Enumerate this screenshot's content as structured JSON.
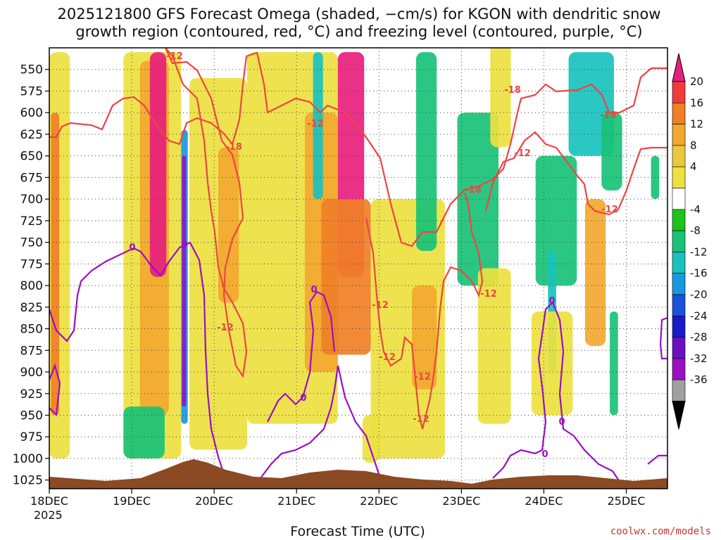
{
  "chart_data": {
    "type": "heatmap",
    "title_line1": "2025121800 GFS Forecast Omega (shaded, −cm/s) for KGON with dendritic snow",
    "title_line2": "growth region (contoured, red, °C) and freezing level (contoured, purple, °C)",
    "xlabel": "Forecast Time (UTC)",
    "credit": "coolwx.com/models",
    "x_ticks": [
      "18DEC",
      "19DEC",
      "20DEC",
      "21DEC",
      "22DEC",
      "23DEC",
      "24DEC",
      "25DEC"
    ],
    "x_year": "2025",
    "x_range_days": [
      18,
      25.5
    ],
    "y_ticks": [
      550,
      575,
      600,
      625,
      650,
      675,
      700,
      725,
      750,
      775,
      800,
      825,
      850,
      875,
      900,
      925,
      950,
      975,
      1000,
      1025
    ],
    "y_range_hpa": [
      525,
      1035
    ],
    "grid": true,
    "colorbar": {
      "ticks": [
        "20",
        "16",
        "12",
        "8",
        "4",
        "-4",
        "-8",
        "-12",
        "-16",
        "-20",
        "-24",
        "-28",
        "-32",
        "-36"
      ],
      "colors": [
        "#e8207d",
        "#ef3b3b",
        "#f07f26",
        "#f2a830",
        "#e9c83d",
        "#ede13f",
        "#ffffff",
        "#1ec21a",
        "#19c277",
        "#19c2bd",
        "#1898e0",
        "#1a52d8",
        "#1a1ac8",
        "#6a10c2",
        "#9a10c2",
        "#a0a0a0",
        "#000000"
      ]
    },
    "omega_regions": [
      {
        "omega": 6,
        "x": [
          18.0,
          18.25
        ],
        "p": [
          530,
          1000
        ]
      },
      {
        "omega": 12,
        "x": [
          18.02,
          18.12
        ],
        "p": [
          600,
          950
        ]
      },
      {
        "omega": 5,
        "x": [
          18.9,
          19.6
        ],
        "p": [
          530,
          1000
        ]
      },
      {
        "omega": 10,
        "x": [
          19.1,
          19.45
        ],
        "p": [
          540,
          950
        ]
      },
      {
        "omega": 22,
        "x": [
          19.22,
          19.42
        ],
        "p": [
          530,
          790
        ]
      },
      {
        "omega": -18,
        "x": [
          19.6,
          19.68
        ],
        "p": [
          620,
          960
        ]
      },
      {
        "omega": -30,
        "x": [
          19.61,
          19.66
        ],
        "p": [
          650,
          940
        ]
      },
      {
        "omega": 5,
        "x": [
          19.7,
          20.4
        ],
        "p": [
          560,
          990
        ]
      },
      {
        "omega": 10,
        "x": [
          20.05,
          20.3
        ],
        "p": [
          640,
          820
        ]
      },
      {
        "omega": 6,
        "x": [
          20.4,
          21.5
        ],
        "p": [
          530,
          960
        ]
      },
      {
        "omega": 10,
        "x": [
          21.1,
          21.5
        ],
        "p": [
          600,
          900
        ]
      },
      {
        "omega": 22,
        "x": [
          21.5,
          21.82
        ],
        "p": [
          530,
          790
        ]
      },
      {
        "omega": 12,
        "x": [
          21.3,
          21.9
        ],
        "p": [
          700,
          880
        ]
      },
      {
        "omega": 5,
        "x": [
          21.9,
          22.8
        ],
        "p": [
          700,
          1000
        ]
      },
      {
        "omega": 10,
        "x": [
          22.4,
          22.7
        ],
        "p": [
          800,
          920
        ]
      },
      {
        "omega": -12,
        "x": [
          21.2,
          21.32
        ],
        "p": [
          530,
          700
        ]
      },
      {
        "omega": -8,
        "x": [
          22.45,
          22.7
        ],
        "p": [
          530,
          760
        ]
      },
      {
        "omega": -8,
        "x": [
          22.95,
          23.45
        ],
        "p": [
          600,
          800
        ]
      },
      {
        "omega": 5,
        "x": [
          23.35,
          23.6
        ],
        "p": [
          520,
          640
        ]
      },
      {
        "omega": 5,
        "x": [
          23.2,
          23.6
        ],
        "p": [
          780,
          960
        ]
      },
      {
        "omega": -8,
        "x": [
          23.9,
          24.4
        ],
        "p": [
          650,
          800
        ]
      },
      {
        "omega": -12,
        "x": [
          24.05,
          24.15
        ],
        "p": [
          760,
          900
        ]
      },
      {
        "omega": -12,
        "x": [
          24.3,
          24.85
        ],
        "p": [
          530,
          650
        ]
      },
      {
        "omega": 8,
        "x": [
          24.5,
          24.75
        ],
        "p": [
          700,
          870
        ]
      },
      {
        "omega": -8,
        "x": [
          24.7,
          24.95
        ],
        "p": [
          600,
          690
        ]
      },
      {
        "omega": 5,
        "x": [
          23.85,
          24.35
        ],
        "p": [
          830,
          950
        ]
      },
      {
        "omega": -8,
        "x": [
          24.8,
          24.9
        ],
        "p": [
          830,
          950
        ]
      },
      {
        "omega": -10,
        "x": [
          18.9,
          19.4
        ],
        "p": [
          940,
          1000
        ]
      },
      {
        "omega": -8,
        "x": [
          25.3,
          25.4
        ],
        "p": [
          650,
          700
        ]
      },
      {
        "omega": 5,
        "x": [
          21.8,
          22.0
        ],
        "p": [
          950,
          1005
        ]
      }
    ],
    "dgz_label_values": [
      "-12",
      "-12",
      "-18",
      "-12",
      "-12",
      "-12",
      "-18",
      "-12",
      "-18",
      "-12",
      "-18",
      "-12",
      "-12",
      "-12"
    ],
    "freezing_label_values": [
      "0",
      "0",
      "0",
      "0",
      "0",
      "0",
      "0"
    ]
  }
}
